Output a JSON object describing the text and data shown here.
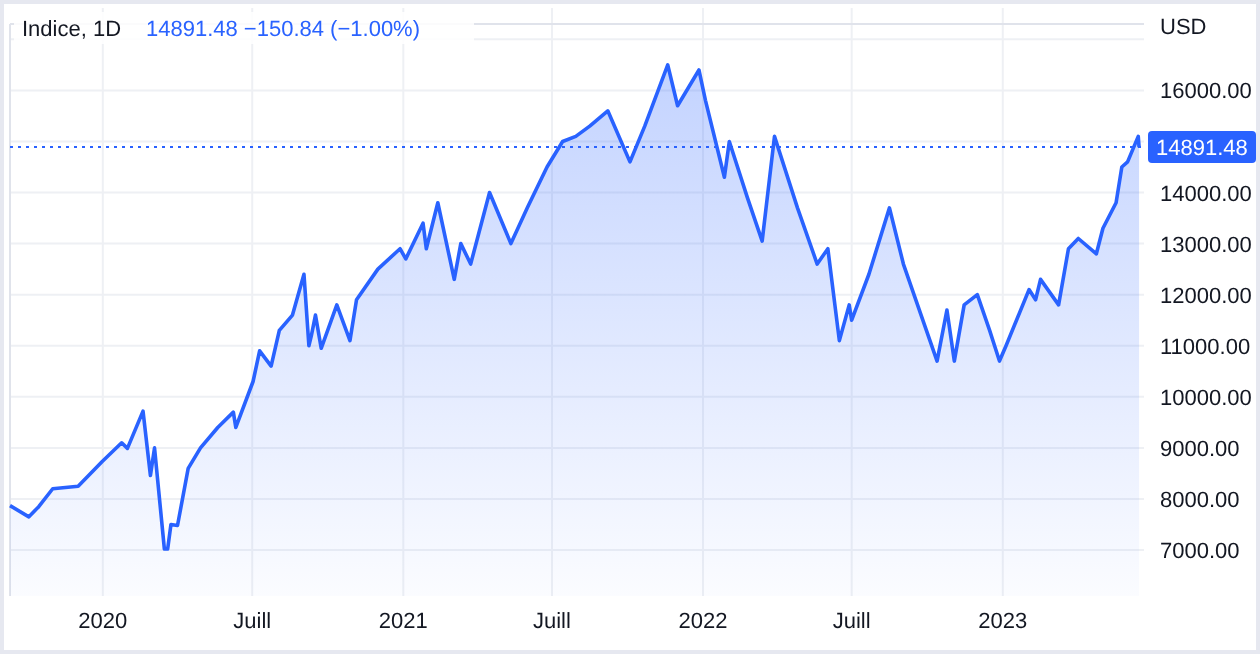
{
  "chart_data": {
    "type": "area",
    "title": "Indice, 1D",
    "subtitle": "14891.48  −150.84 (−1.00%)",
    "ylabel": "USD",
    "x": [
      "2019-09-10",
      "2019-10-03",
      "2019-10-15",
      "2019-11-01",
      "2019-12-02",
      "2019-12-31",
      "2020-01-24",
      "2020-01-31",
      "2020-02-19",
      "2020-02-28",
      "2020-03-04",
      "2020-03-16",
      "2020-03-20",
      "2020-03-24",
      "2020-04-01",
      "2020-04-14",
      "2020-04-29",
      "2020-05-20",
      "2020-06-08",
      "2020-06-11",
      "2020-07-02",
      "2020-07-10",
      "2020-07-24",
      "2020-08-03",
      "2020-08-19",
      "2020-09-02",
      "2020-09-08",
      "2020-09-11",
      "2020-09-16",
      "2020-09-23",
      "2020-10-12",
      "2020-10-28",
      "2020-11-05",
      "2020-12-01",
      "2020-12-28",
      "2021-01-04",
      "2021-01-25",
      "2021-01-29",
      "2021-02-12",
      "2021-03-04",
      "2021-03-12",
      "2021-03-24",
      "2021-04-16",
      "2021-05-12",
      "2021-06-01",
      "2021-06-25",
      "2021-07-14",
      "2021-07-30",
      "2021-08-16",
      "2021-09-07",
      "2021-10-04",
      "2021-10-22",
      "2021-11-19",
      "2021-12-01",
      "2021-12-27",
      "2022-01-04",
      "2022-01-27",
      "2022-02-02",
      "2022-02-24",
      "2022-03-14",
      "2022-03-29",
      "2022-04-26",
      "2022-05-20",
      "2022-06-02",
      "2022-06-16",
      "2022-06-28",
      "2022-07-01",
      "2022-07-22",
      "2022-08-16",
      "2022-09-02",
      "2022-09-30",
      "2022-10-13",
      "2022-10-25",
      "2022-11-03",
      "2022-11-15",
      "2022-12-01",
      "2022-12-16",
      "2022-12-28",
      "2023-01-05",
      "2023-02-02",
      "2023-02-10",
      "2023-02-16",
      "2023-03-10",
      "2023-03-22",
      "2023-04-03",
      "2023-04-25",
      "2023-05-03",
      "2023-05-19",
      "2023-05-26",
      "2023-06-02",
      "2023-06-15",
      "2023-06-16"
    ],
    "series": [
      {
        "color": "#2962ff",
        "values": [
          7870,
          7650,
          7850,
          8200,
          8250,
          8730,
          9100,
          8990,
          9720,
          8460,
          9000,
          7020,
          7020,
          7500,
          7480,
          8600,
          9000,
          9400,
          9700,
          9400,
          10300,
          10900,
          10600,
          11300,
          11600,
          12400,
          11000,
          11200,
          11600,
          10950,
          11800,
          11100,
          11900,
          12500,
          12900,
          12700,
          13400,
          12900,
          13800,
          12300,
          13000,
          12600,
          14000,
          13000,
          13700,
          14500,
          15000,
          15100,
          15300,
          15600,
          14600,
          15300,
          16500,
          15700,
          16400,
          15800,
          14300,
          15000,
          13900,
          13050,
          15100,
          13700,
          12600,
          12900,
          11100,
          11800,
          11500,
          12400,
          13700,
          12600,
          11300,
          10700,
          11700,
          10700,
          11800,
          12000,
          11300,
          10700,
          11000,
          12100,
          11900,
          12300,
          11800,
          12900,
          13100,
          12800,
          13300,
          13800,
          14500,
          14600,
          15100,
          14890
        ]
      }
    ],
    "xlim": [
      "2019-09-10",
      "2023-06-22"
    ],
    "xticks": [
      {
        "value": "2020-01-01",
        "label": "2020"
      },
      {
        "value": "2020-07-01",
        "label": "Juill"
      },
      {
        "value": "2021-01-01",
        "label": "2021"
      },
      {
        "value": "2021-07-01",
        "label": "Juill"
      },
      {
        "value": "2022-01-01",
        "label": "2022"
      },
      {
        "value": "2022-07-01",
        "label": "Juill"
      },
      {
        "value": "2023-01-01",
        "label": "2023"
      }
    ],
    "ylim": [
      6100,
      17300
    ],
    "yticks": [
      {
        "value": 7000,
        "label": "7000.00"
      },
      {
        "value": 8000,
        "label": "8000.00"
      },
      {
        "value": 9000,
        "label": "9000.00"
      },
      {
        "value": 10000,
        "label": "10000.00"
      },
      {
        "value": 11000,
        "label": "11000.00"
      },
      {
        "value": 12000,
        "label": "12000.00"
      },
      {
        "value": 13000,
        "label": "13000.00"
      },
      {
        "value": 14000,
        "label": "14000.00"
      },
      {
        "value": 15000,
        "label": null
      },
      {
        "value": 16000,
        "label": "16000.00"
      },
      {
        "value": 17000,
        "label": null
      }
    ],
    "ref_lines": [
      {
        "axis": "y",
        "value": 14891.48,
        "label": "14891.48",
        "color": "#2962ff",
        "line_style": "dotted"
      }
    ],
    "grid": true
  }
}
